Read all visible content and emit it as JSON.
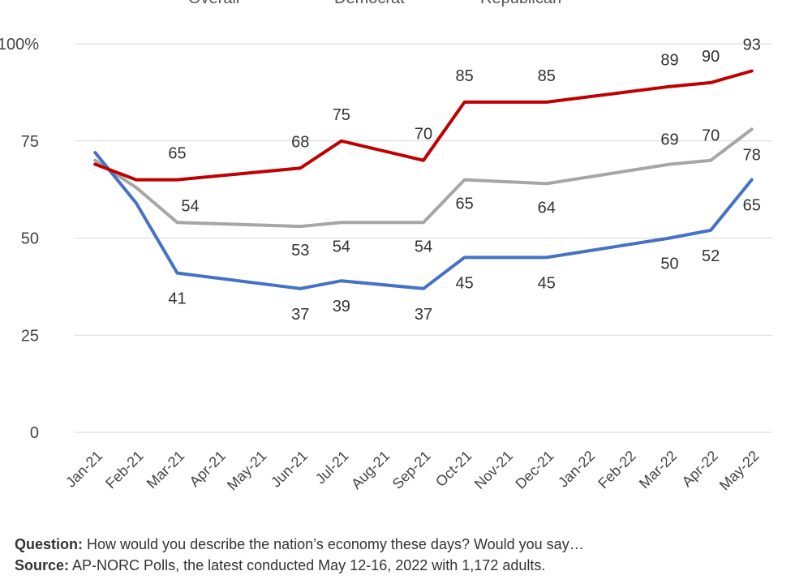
{
  "chart_data": {
    "type": "line",
    "categories": [
      "Jan-21",
      "Feb-21",
      "Mar-21",
      "Apr-21",
      "May-21",
      "Jun-21",
      "Jul-21",
      "Aug-21",
      "Sep-21",
      "Oct-21",
      "Nov-21",
      "Dec-21",
      "Jan-22",
      "Feb-22",
      "Mar-22",
      "Apr-22",
      "May-22"
    ],
    "series": [
      {
        "name": "Overall",
        "color": "#A6A6A6",
        "values": [
          70,
          63,
          54,
          null,
          null,
          53,
          54,
          null,
          54,
          65,
          null,
          64,
          null,
          null,
          69,
          70,
          78
        ],
        "labels": [
          "",
          "",
          "54",
          "",
          "",
          "53",
          "54",
          "",
          "54",
          "65",
          "",
          "64",
          "",
          "",
          "69",
          "70",
          "78"
        ]
      },
      {
        "name": "Democrat",
        "color": "#4472C4",
        "values": [
          72,
          59,
          41,
          null,
          null,
          37,
          39,
          null,
          37,
          45,
          null,
          45,
          null,
          null,
          50,
          52,
          65
        ],
        "labels": [
          "",
          "",
          "41",
          "",
          "",
          "37",
          "39",
          "",
          "37",
          "45",
          "",
          "45",
          "",
          "",
          "50",
          "52",
          "65"
        ]
      },
      {
        "name": "Republican",
        "color": "#C00000",
        "values": [
          69,
          65,
          65,
          null,
          null,
          68,
          75,
          null,
          70,
          85,
          null,
          85,
          null,
          null,
          89,
          90,
          93
        ],
        "labels": [
          "",
          "",
          "65",
          "",
          "",
          "68",
          "75",
          "",
          "70",
          "85",
          "",
          "85",
          "",
          "",
          "89",
          "90",
          "93"
        ]
      }
    ],
    "y_ticks": [
      "0",
      "25",
      "50",
      "75",
      "100%"
    ],
    "ylim": [
      0,
      100
    ],
    "grid": true,
    "legend": "top"
  },
  "footer": {
    "question_label": "Question:",
    "question_text": "How would you describe the nation’s economy these days? Would you say…",
    "source_label": "Source:",
    "source_text": "AP-NORC Polls, the latest conducted May 12-16, 2022 with 1,172 adults."
  }
}
